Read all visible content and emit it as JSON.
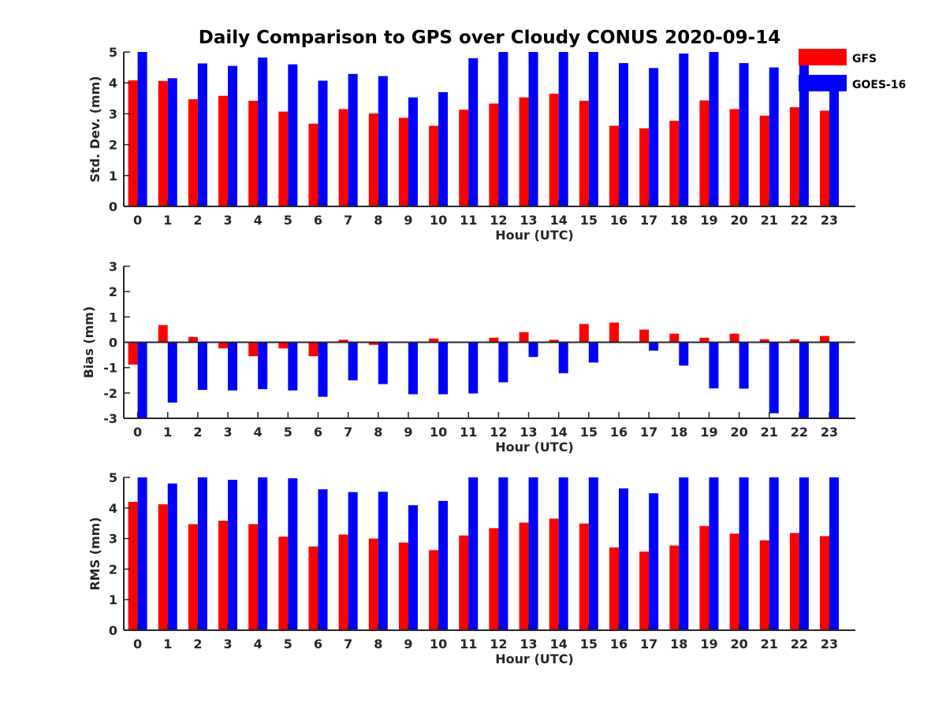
{
  "figure": {
    "title": "Daily Comparison to GPS over Cloudy CONUS 2020-09-14"
  },
  "legend": {
    "placement": "top-right",
    "entries": [
      {
        "name": "GFS",
        "color": "#ff0000"
      },
      {
        "name": "GOES-16",
        "color": "#0000ff"
      }
    ]
  },
  "chart_data": [
    {
      "type": "bar",
      "ylabel": "Std. Dev. (mm)",
      "xlabel": "Hour (UTC)",
      "ylim": [
        0,
        5
      ],
      "yticks": [
        "0",
        "1",
        "2",
        "3",
        "4",
        "5"
      ],
      "categories": [
        "0",
        "1",
        "2",
        "3",
        "4",
        "5",
        "6",
        "7",
        "8",
        "9",
        "10",
        "11",
        "12",
        "13",
        "14",
        "15",
        "16",
        "17",
        "18",
        "19",
        "20",
        "21",
        "22",
        "23"
      ],
      "series": [
        {
          "name": "GFS",
          "color": "#ff0000",
          "values": [
            4.08,
            4.06,
            3.47,
            3.58,
            3.42,
            3.07,
            2.68,
            3.15,
            3.01,
            2.87,
            2.61,
            3.13,
            3.33,
            3.53,
            3.65,
            3.42,
            2.61,
            2.53,
            2.77,
            3.43,
            3.15,
            2.94,
            3.21,
            3.1
          ]
        },
        {
          "name": "GOES-16",
          "color": "#0000ff",
          "values": [
            5.0,
            4.15,
            4.63,
            4.55,
            4.82,
            4.6,
            4.07,
            4.29,
            4.22,
            3.53,
            3.7,
            4.8,
            5.0,
            5.0,
            5.0,
            5.0,
            4.64,
            4.48,
            4.95,
            5.0,
            4.64,
            4.5,
            4.7,
            3.8
          ]
        }
      ]
    },
    {
      "type": "bar",
      "ylabel": "Bias (mm)",
      "xlabel": "Hour (UTC)",
      "ylim": [
        -3,
        3
      ],
      "yticks": [
        "-3",
        "-2",
        "-1",
        "0",
        "1",
        "2",
        "3"
      ],
      "categories": [
        "0",
        "1",
        "2",
        "3",
        "4",
        "5",
        "6",
        "7",
        "8",
        "9",
        "10",
        "11",
        "12",
        "13",
        "14",
        "15",
        "16",
        "17",
        "18",
        "19",
        "20",
        "21",
        "22",
        "23"
      ],
      "series": [
        {
          "name": "GFS",
          "color": "#ff0000",
          "values": [
            -0.88,
            0.68,
            0.21,
            -0.24,
            -0.55,
            -0.24,
            -0.55,
            0.1,
            -0.1,
            -0.03,
            0.15,
            0.03,
            0.18,
            0.4,
            0.1,
            0.72,
            0.78,
            0.5,
            0.34,
            0.18,
            0.34,
            0.12,
            0.12,
            0.25
          ]
        },
        {
          "name": "GOES-16",
          "color": "#0000ff",
          "values": [
            -3.0,
            -2.38,
            -1.88,
            -1.9,
            -1.85,
            -1.9,
            -2.15,
            -1.5,
            -1.65,
            -2.05,
            -2.05,
            -2.02,
            -1.58,
            -0.58,
            -1.22,
            -0.8,
            0.0,
            -0.33,
            -0.92,
            -1.82,
            -1.83,
            -2.8,
            -3.0,
            -3.0
          ]
        }
      ]
    },
    {
      "type": "bar",
      "ylabel": "RMS (mm)",
      "xlabel": "Hour (UTC)",
      "ylim": [
        0,
        5
      ],
      "yticks": [
        "0",
        "1",
        "2",
        "3",
        "4",
        "5"
      ],
      "categories": [
        "0",
        "1",
        "2",
        "3",
        "4",
        "5",
        "6",
        "7",
        "8",
        "9",
        "10",
        "11",
        "12",
        "13",
        "14",
        "15",
        "16",
        "17",
        "18",
        "19",
        "20",
        "21",
        "22",
        "23"
      ],
      "series": [
        {
          "name": "GFS",
          "color": "#ff0000",
          "values": [
            4.2,
            4.12,
            3.47,
            3.58,
            3.47,
            3.06,
            2.74,
            3.13,
            3.0,
            2.87,
            2.62,
            3.1,
            3.34,
            3.52,
            3.65,
            3.49,
            2.71,
            2.57,
            2.77,
            3.41,
            3.16,
            2.94,
            3.18,
            3.08
          ]
        },
        {
          "name": "GOES-16",
          "color": "#0000ff",
          "values": [
            5.0,
            4.8,
            5.0,
            4.92,
            5.0,
            4.97,
            4.61,
            4.52,
            4.53,
            4.09,
            4.23,
            5.0,
            5.0,
            5.0,
            5.0,
            5.0,
            4.64,
            4.48,
            5.0,
            5.0,
            5.0,
            5.0,
            5.0,
            5.0
          ]
        }
      ]
    }
  ]
}
